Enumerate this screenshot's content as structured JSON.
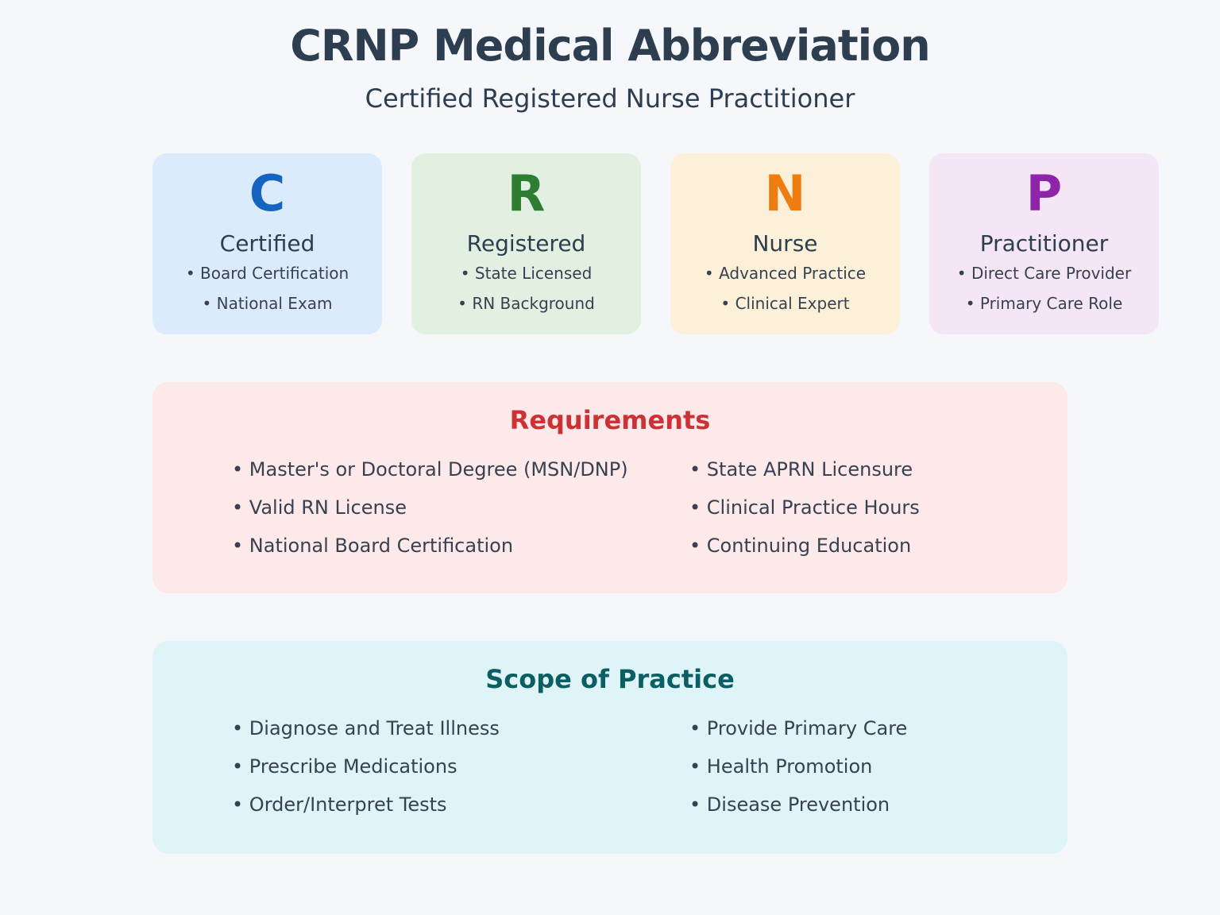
{
  "page": {
    "background": "#f5f7fa",
    "text_color": "#2c3e50"
  },
  "header": {
    "title": "CRNP Medical Abbreviation",
    "subtitle": "Certified Registered Nurse Practitioner"
  },
  "letter_cards": [
    {
      "letter": "C",
      "word": "Certified",
      "points": [
        "Board Certification",
        "National Exam"
      ],
      "letter_color": "#1565c0",
      "card_bg": "#dcebfb"
    },
    {
      "letter": "R",
      "word": "Registered",
      "points": [
        "State Licensed",
        "RN Background"
      ],
      "letter_color": "#2e7d32",
      "card_bg": "#e1f0e1"
    },
    {
      "letter": "N",
      "word": "Nurse",
      "points": [
        "Advanced Practice",
        "Clinical Expert"
      ],
      "letter_color": "#ee7c10",
      "card_bg": "#fdf0d9"
    },
    {
      "letter": "P",
      "word": "Practitioner",
      "points": [
        "Direct Care Provider",
        "Primary Care Role"
      ],
      "letter_color": "#8e24aa",
      "card_bg": "#f4e6f5"
    }
  ],
  "requirements": {
    "title": "Requirements",
    "title_color": "#cc3233",
    "panel_bg": "#fde9ea",
    "items_left": [
      "Master's or Doctoral Degree (MSN/DNP)",
      "Valid RN License",
      "National Board Certification"
    ],
    "items_right": [
      "State APRN Licensure",
      "Clinical Practice Hours",
      "Continuing Education"
    ]
  },
  "scope": {
    "title": "Scope of Practice",
    "title_color": "#0b5e63",
    "panel_bg": "#def4f7",
    "items_left": [
      "Diagnose and Treat Illness",
      "Prescribe Medications",
      "Order/Interpret Tests"
    ],
    "items_right": [
      "Provide Primary Care",
      "Health Promotion",
      "Disease Prevention"
    ]
  }
}
